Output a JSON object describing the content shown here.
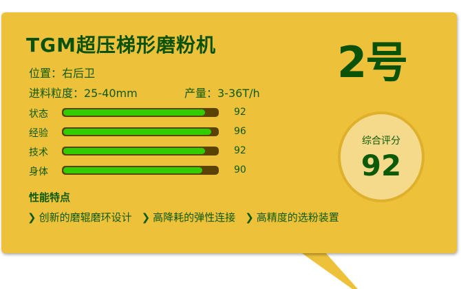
{
  "title": "TGM超压梯形磨粉机",
  "number": "2号",
  "position": "位置：右后卫",
  "feed": "进料粒度：25-40mm",
  "output": "产量：3-36T/h",
  "stats": [
    {
      "label": "状态",
      "value": 92
    },
    {
      "label": "经验",
      "value": 96
    },
    {
      "label": "技术",
      "value": 92
    },
    {
      "label": "身体",
      "value": 90
    }
  ],
  "score": {
    "caption": "综合评分",
    "value": "92"
  },
  "features": {
    "heading": "性能特点",
    "items": [
      "创新的磨辊磨环设计",
      "高降耗的弹性连接",
      "高精度的选粉装置"
    ],
    "icon": "chevron-right-icon"
  },
  "colors": {
    "card": "#eec13a",
    "text": "#0d5a06",
    "bar_fill": "#33cc00",
    "bar_track": "#5a4300"
  }
}
